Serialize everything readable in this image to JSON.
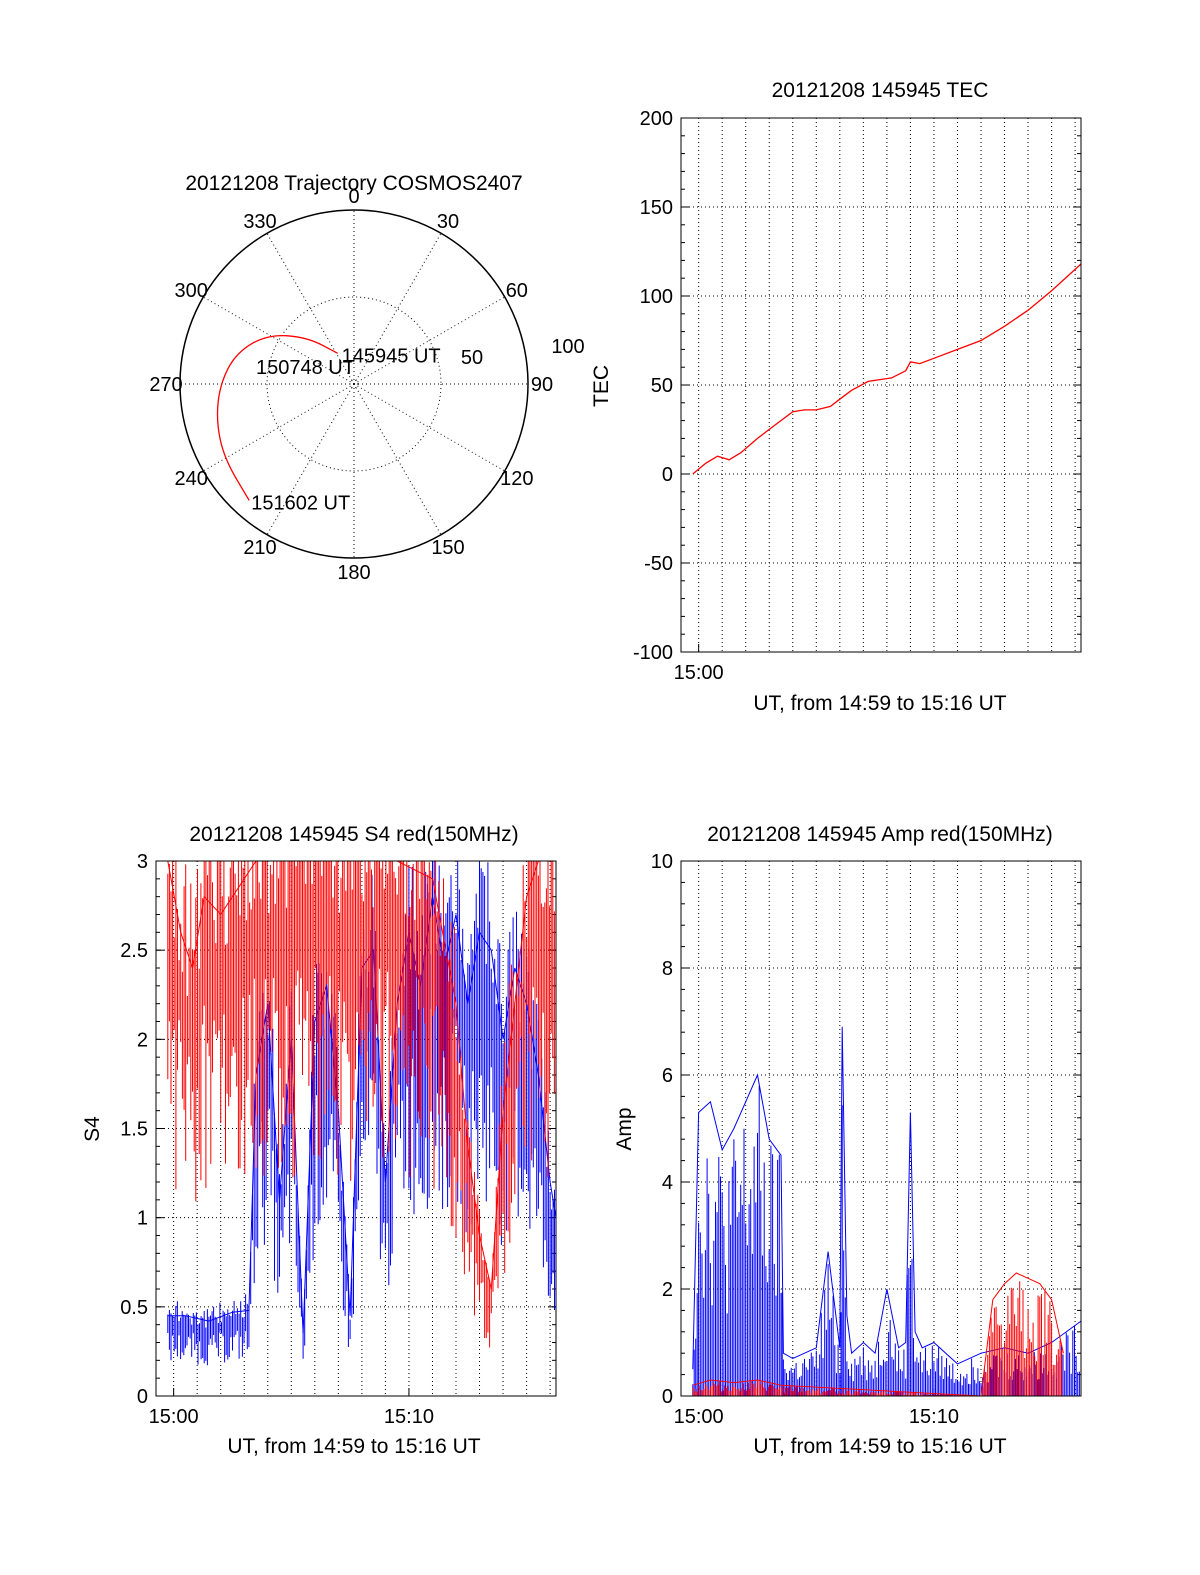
{
  "chart_data": [
    {
      "type": "polar",
      "title": "20121208 Trajectory COSMOS2407",
      "azimuth_labels": [
        "0",
        "30",
        "60",
        "90",
        "120",
        "150",
        "180",
        "210",
        "240",
        "270",
        "300",
        "330"
      ],
      "radial_labels": [
        "50",
        "100"
      ],
      "annotations": {
        "start": "145945 UT",
        "mid": "150748 UT",
        "end": "151602 UT"
      },
      "trajectory": [
        {
          "az": 332,
          "r": 20
        },
        {
          "az": 315,
          "r": 38
        },
        {
          "az": 300,
          "r": 57
        },
        {
          "az": 285,
          "r": 70
        },
        {
          "az": 270,
          "r": 77
        },
        {
          "az": 255,
          "r": 82
        },
        {
          "az": 240,
          "r": 86
        },
        {
          "az": 222,
          "r": 90
        }
      ],
      "trajectory_color": "#ff0000"
    },
    {
      "type": "line",
      "title": "20121208 145945 TEC",
      "xlabel": "UT, from 14:59 to 15:16 UT",
      "ylabel": "TEC",
      "xlim": [
        -0.75,
        16.25
      ],
      "ylim": [
        -100,
        200
      ],
      "yticks": [
        "200",
        "150",
        "100",
        "50",
        "0",
        "-50",
        "-100"
      ],
      "xticks": [
        {
          "value": 0,
          "label": "15:00"
        }
      ],
      "series": [
        {
          "color": "#ff0000",
          "x": [
            -0.25,
            0.3,
            0.8,
            1.3,
            1.8,
            2.5,
            3.2,
            4.0,
            4.5,
            5.0,
            5.6,
            6.0,
            6.5,
            7.2,
            8.2,
            8.8,
            9.0,
            9.4,
            10.0,
            11.0,
            12.0,
            13.0,
            14.0,
            15.0,
            16.25
          ],
          "y": [
            0,
            6,
            10,
            8,
            12,
            20,
            27,
            35,
            36,
            36,
            38,
            42,
            47,
            52,
            54,
            58,
            63,
            62,
            65,
            70,
            75,
            83,
            92,
            103,
            118
          ]
        }
      ]
    },
    {
      "type": "line",
      "title": "20121208 145945 S4 red(150MHz)",
      "xlabel": "UT, from 14:59 to 15:16 UT",
      "ylabel": "S4",
      "xlim": [
        -0.75,
        16.25
      ],
      "ylim": [
        0,
        3
      ],
      "yticks": [
        "3",
        "2.5",
        "2",
        "1.5",
        "1",
        "0.5",
        "0"
      ],
      "xticks": [
        {
          "value": 0,
          "label": "15:00"
        },
        {
          "value": 10,
          "label": "15:10"
        }
      ],
      "series": [
        {
          "color": "#0000ff",
          "x": [
            -0.25,
            0.5,
            1.5,
            2.5,
            3.2,
            3.5,
            4.0,
            4.5,
            5.0,
            5.5,
            6.0,
            6.5,
            7.0,
            7.5,
            8.0,
            8.5,
            9.0,
            9.5,
            10.0,
            10.5,
            11.0,
            11.5,
            12.0,
            12.5,
            13.0,
            13.5,
            14.0,
            14.5,
            15.0,
            15.5,
            16.0,
            16.25
          ],
          "y": [
            0.45,
            0.45,
            0.42,
            0.47,
            0.48,
            1.8,
            2.2,
            1.1,
            2.0,
            0.35,
            2.1,
            2.3,
            1.6,
            0.45,
            2.4,
            2.5,
            1.2,
            2.2,
            2.6,
            2.3,
            2.8,
            2.4,
            2.7,
            2.2,
            2.6,
            2.5,
            2.0,
            2.4,
            2.2,
            1.8,
            1.2,
            1.0
          ]
        },
        {
          "color": "#ff0000",
          "x": [
            -0.25,
            0.3,
            0.8,
            1.3,
            2.0,
            3.5,
            5.0,
            6.5,
            8.0,
            9.5,
            11.0,
            12.0,
            12.5,
            13.0,
            13.5,
            14.0,
            14.5,
            15.0,
            15.5,
            16.25
          ],
          "y": [
            3.0,
            2.6,
            2.4,
            2.8,
            2.7,
            3.0,
            3.0,
            3.0,
            3.0,
            3.0,
            2.9,
            2.2,
            1.4,
            0.9,
            0.6,
            1.6,
            2.2,
            2.8,
            3.0,
            3.0
          ]
        }
      ]
    },
    {
      "type": "line",
      "title": "20121208 145945 Amp red(150MHz)",
      "xlabel": "UT, from 14:59 to 15:16 UT",
      "ylabel": "Amp",
      "xlim": [
        -0.75,
        16.25
      ],
      "ylim": [
        0,
        10
      ],
      "yticks": [
        "10",
        "8",
        "6",
        "4",
        "2",
        "0"
      ],
      "xticks": [
        {
          "value": 0,
          "label": "15:00"
        },
        {
          "value": 10,
          "label": "15:10"
        }
      ],
      "series": [
        {
          "color": "#0000ff",
          "x": [
            -0.25,
            0.0,
            0.5,
            1.0,
            1.5,
            2.0,
            2.5,
            3.0,
            3.5,
            3.6,
            4.0,
            4.5,
            5.0,
            5.5,
            6.0,
            6.1,
            6.3,
            6.5,
            7.0,
            7.5,
            8.0,
            8.5,
            8.8,
            9.0,
            9.2,
            9.5,
            10.0,
            11.0,
            12.0,
            13.0,
            14.0,
            15.0,
            16.25
          ],
          "y": [
            0.5,
            5.3,
            5.5,
            4.6,
            5.0,
            5.5,
            6.0,
            4.8,
            4.5,
            0.8,
            0.7,
            0.8,
            0.9,
            2.7,
            0.9,
            6.9,
            1.5,
            0.8,
            1.0,
            0.8,
            2.0,
            0.9,
            1.0,
            5.3,
            1.2,
            0.9,
            1.0,
            0.6,
            0.8,
            0.9,
            0.8,
            1.0,
            1.4
          ]
        },
        {
          "color": "#ff0000",
          "x": [
            -0.25,
            0.5,
            1.5,
            2.5,
            3.5,
            12.0,
            12.5,
            13.0,
            13.5,
            14.0,
            14.5,
            15.0,
            15.5
          ],
          "y": [
            0.2,
            0.3,
            0.25,
            0.3,
            0.2,
            0.0,
            1.8,
            2.1,
            2.3,
            2.2,
            2.1,
            1.8,
            0.8
          ]
        }
      ]
    }
  ]
}
